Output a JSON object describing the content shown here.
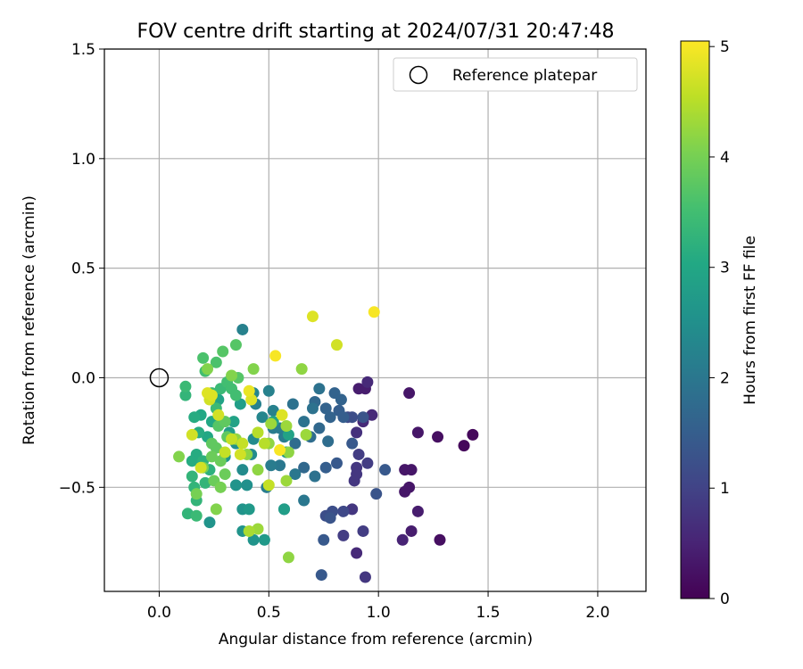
{
  "chart_data": {
    "type": "scatter",
    "title": "FOV centre drift starting at 2024/07/31 20:47:48",
    "xlabel": "Angular distance from reference (arcmin)",
    "ylabel": "Rotation from reference (arcmin)",
    "xlim": [
      -0.25,
      2.22
    ],
    "ylim": [
      -0.975,
      1.5
    ],
    "xticks": [
      0.0,
      0.5,
      1.0,
      1.5,
      2.0
    ],
    "xtick_labels": [
      "0.0",
      "0.5",
      "1.0",
      "1.5",
      "2.0"
    ],
    "yticks": [
      -0.5,
      0.0,
      0.5,
      1.0,
      1.5
    ],
    "ytick_labels": [
      "−0.5",
      "0.0",
      "0.5",
      "1.0",
      "1.5"
    ],
    "grid": true,
    "legend": {
      "position": "top-right",
      "entries": [
        {
          "label": "Reference platepar",
          "marker": "open-circle"
        }
      ]
    },
    "reference_point": {
      "x": 0.0,
      "y": 0.0,
      "label": "Reference platepar"
    },
    "colorbar": {
      "label": "Hours from first FF file",
      "range": [
        0,
        5.05
      ],
      "ticks": [
        0,
        1,
        2,
        3,
        4,
        5
      ],
      "tick_labels": [
        "0",
        "1",
        "2",
        "3",
        "4",
        "5"
      ],
      "colormap": "viridis"
    },
    "series": [
      {
        "name": "",
        "note_color_encodes": "hours",
        "points": [
          [
            1.43,
            -0.26,
            0.1
          ],
          [
            1.39,
            -0.31,
            0.1
          ],
          [
            1.27,
            -0.27,
            0.2
          ],
          [
            1.28,
            -0.74,
            0.2
          ],
          [
            1.18,
            -0.25,
            0.3
          ],
          [
            1.14,
            -0.07,
            0.3
          ],
          [
            1.15,
            -0.42,
            0.3
          ],
          [
            1.12,
            -0.42,
            0.3
          ],
          [
            1.14,
            -0.5,
            0.3
          ],
          [
            1.12,
            -0.52,
            0.3
          ],
          [
            1.18,
            -0.61,
            0.4
          ],
          [
            1.15,
            -0.7,
            0.4
          ],
          [
            1.11,
            -0.74,
            0.5
          ],
          [
            0.91,
            -0.05,
            0.4
          ],
          [
            0.94,
            -0.05,
            0.4
          ],
          [
            0.95,
            -0.02,
            0.6
          ],
          [
            0.97,
            -0.17,
            0.6
          ],
          [
            0.93,
            -0.2,
            0.6
          ],
          [
            0.9,
            -0.25,
            0.7
          ],
          [
            0.89,
            -0.47,
            0.8
          ],
          [
            0.9,
            -0.41,
            0.8
          ],
          [
            0.95,
            -0.39,
            0.9
          ],
          [
            0.91,
            -0.35,
            0.9
          ],
          [
            0.9,
            -0.44,
            0.8
          ],
          [
            0.93,
            -0.7,
            0.9
          ],
          [
            0.9,
            -0.8,
            0.6
          ],
          [
            0.94,
            -0.91,
            0.8
          ],
          [
            0.84,
            -0.72,
            0.9
          ],
          [
            0.88,
            -0.6,
            0.8
          ],
          [
            0.86,
            -0.18,
            1.1
          ],
          [
            0.88,
            -0.18,
            1.2
          ],
          [
            0.93,
            -0.18,
            1.3
          ],
          [
            0.99,
            -0.53,
            1.3
          ],
          [
            1.03,
            -0.42,
            1.4
          ],
          [
            0.84,
            -0.61,
            1.1
          ],
          [
            0.79,
            -0.61,
            1.2
          ],
          [
            0.76,
            -0.63,
            1.2
          ],
          [
            0.78,
            -0.64,
            1.3
          ],
          [
            0.75,
            -0.74,
            1.4
          ],
          [
            0.74,
            -0.9,
            1.4
          ],
          [
            0.81,
            -0.39,
            1.4
          ],
          [
            0.76,
            -0.41,
            1.5
          ],
          [
            0.88,
            -0.3,
            1.4
          ],
          [
            0.82,
            -0.15,
            1.5
          ],
          [
            0.84,
            -0.18,
            1.5
          ],
          [
            0.78,
            -0.18,
            1.6
          ],
          [
            0.8,
            -0.07,
            1.6
          ],
          [
            0.83,
            -0.1,
            1.6
          ],
          [
            0.76,
            -0.14,
            1.6
          ],
          [
            0.71,
            -0.11,
            1.7
          ],
          [
            0.73,
            -0.23,
            1.7
          ],
          [
            0.77,
            -0.29,
            1.8
          ],
          [
            0.69,
            -0.27,
            1.8
          ],
          [
            0.73,
            -0.05,
            1.9
          ],
          [
            0.7,
            -0.14,
            1.9
          ],
          [
            0.66,
            -0.2,
            1.9
          ],
          [
            0.61,
            -0.12,
            1.9
          ],
          [
            0.62,
            -0.3,
            1.8
          ],
          [
            0.66,
            -0.41,
            1.7
          ],
          [
            0.71,
            -0.45,
            1.9
          ],
          [
            0.66,
            -0.56,
            2.0
          ],
          [
            0.57,
            -0.6,
            2.0
          ],
          [
            0.62,
            -0.44,
            2.0
          ],
          [
            0.55,
            -0.4,
            2.0
          ],
          [
            0.51,
            -0.4,
            2.1
          ],
          [
            0.49,
            -0.5,
            2.1
          ],
          [
            0.52,
            -0.23,
            2.1
          ],
          [
            0.55,
            -0.23,
            2.1
          ],
          [
            0.57,
            -0.27,
            2.1
          ],
          [
            0.52,
            -0.15,
            2.2
          ],
          [
            0.5,
            -0.06,
            2.2
          ],
          [
            0.43,
            -0.07,
            2.3
          ],
          [
            0.44,
            -0.12,
            2.2
          ],
          [
            0.47,
            -0.18,
            2.3
          ],
          [
            0.38,
            0.22,
            2.2
          ],
          [
            0.43,
            -0.28,
            2.4
          ],
          [
            0.42,
            -0.35,
            2.4
          ],
          [
            0.38,
            -0.42,
            2.4
          ],
          [
            0.35,
            -0.3,
            2.5
          ],
          [
            0.3,
            -0.36,
            2.6
          ],
          [
            0.4,
            -0.49,
            2.5
          ],
          [
            0.35,
            -0.49,
            2.6
          ],
          [
            0.38,
            -0.6,
            2.6
          ],
          [
            0.41,
            -0.6,
            2.7
          ],
          [
            0.38,
            -0.7,
            2.6
          ],
          [
            0.48,
            -0.74,
            2.7
          ],
          [
            0.43,
            -0.74,
            2.6
          ],
          [
            0.23,
            -0.66,
            2.6
          ],
          [
            0.57,
            -0.6,
            2.8
          ],
          [
            0.58,
            -0.34,
            2.6
          ],
          [
            0.59,
            -0.26,
            2.9
          ],
          [
            0.52,
            -0.2,
            2.9
          ],
          [
            0.37,
            -0.12,
            2.8
          ],
          [
            0.32,
            -0.25,
            2.8
          ],
          [
            0.34,
            -0.2,
            2.9
          ],
          [
            0.27,
            -0.1,
            2.9
          ],
          [
            0.24,
            -0.2,
            3.0
          ],
          [
            0.22,
            -0.27,
            3.0
          ],
          [
            0.19,
            -0.17,
            3.0
          ],
          [
            0.16,
            -0.18,
            3.1
          ],
          [
            0.18,
            -0.25,
            3.1
          ],
          [
            0.17,
            -0.35,
            3.1
          ],
          [
            0.15,
            -0.38,
            3.1
          ],
          [
            0.2,
            -0.38,
            3.2
          ],
          [
            0.23,
            -0.42,
            3.2
          ],
          [
            0.21,
            -0.48,
            3.3
          ],
          [
            0.15,
            -0.45,
            3.3
          ],
          [
            0.16,
            -0.5,
            3.3
          ],
          [
            0.17,
            -0.56,
            3.3
          ],
          [
            0.13,
            -0.62,
            3.3
          ],
          [
            0.17,
            -0.63,
            3.4
          ],
          [
            0.24,
            -0.07,
            3.4
          ],
          [
            0.12,
            -0.04,
            3.4
          ],
          [
            0.12,
            -0.08,
            3.3
          ],
          [
            0.26,
            -0.14,
            3.4
          ],
          [
            0.28,
            -0.05,
            3.4
          ],
          [
            0.31,
            -0.02,
            3.5
          ],
          [
            0.33,
            -0.05,
            3.5
          ],
          [
            0.35,
            -0.08,
            3.5
          ],
          [
            0.21,
            0.03,
            3.5
          ],
          [
            0.26,
            0.07,
            3.6
          ],
          [
            0.2,
            0.09,
            3.6
          ],
          [
            0.29,
            0.12,
            3.7
          ],
          [
            0.35,
            0.15,
            3.7
          ],
          [
            0.36,
            0.0,
            3.7
          ],
          [
            0.27,
            -0.22,
            3.7
          ],
          [
            0.24,
            -0.3,
            3.8
          ],
          [
            0.3,
            -0.2,
            3.8
          ],
          [
            0.31,
            -0.27,
            3.8
          ],
          [
            0.26,
            -0.32,
            3.8
          ],
          [
            0.24,
            -0.36,
            3.9
          ],
          [
            0.28,
            -0.38,
            3.9
          ],
          [
            0.3,
            -0.44,
            3.9
          ],
          [
            0.25,
            -0.47,
            3.9
          ],
          [
            0.28,
            -0.5,
            4.0
          ],
          [
            0.2,
            -0.41,
            4.0
          ],
          [
            0.17,
            -0.53,
            4.0
          ],
          [
            0.26,
            -0.6,
            4.1
          ],
          [
            0.09,
            -0.36,
            4.1
          ],
          [
            0.22,
            0.04,
            4.1
          ],
          [
            0.33,
            0.01,
            4.1
          ],
          [
            0.43,
            0.04,
            4.1
          ],
          [
            0.35,
            -0.28,
            4.2
          ],
          [
            0.4,
            -0.35,
            4.2
          ],
          [
            0.45,
            -0.42,
            4.2
          ],
          [
            0.5,
            -0.3,
            4.2
          ],
          [
            0.51,
            -0.21,
            4.3
          ],
          [
            0.59,
            -0.34,
            4.2
          ],
          [
            0.58,
            -0.22,
            4.3
          ],
          [
            0.58,
            -0.47,
            4.3
          ],
          [
            0.67,
            -0.26,
            4.3
          ],
          [
            0.65,
            0.04,
            4.2
          ],
          [
            0.59,
            -0.82,
            4.2
          ],
          [
            0.45,
            -0.69,
            4.3
          ],
          [
            0.41,
            -0.7,
            4.4
          ],
          [
            0.45,
            -0.25,
            4.5
          ],
          [
            0.48,
            -0.3,
            4.5
          ],
          [
            0.38,
            -0.3,
            4.6
          ],
          [
            0.3,
            -0.34,
            4.6
          ],
          [
            0.27,
            -0.17,
            4.7
          ],
          [
            0.23,
            -0.1,
            4.7
          ],
          [
            0.24,
            -0.08,
            4.8
          ],
          [
            0.22,
            -0.07,
            4.8
          ],
          [
            0.19,
            -0.41,
            4.7
          ],
          [
            0.42,
            -0.1,
            4.8
          ],
          [
            0.41,
            -0.06,
            4.9
          ],
          [
            0.15,
            -0.26,
            4.7
          ],
          [
            0.33,
            -0.28,
            4.6
          ],
          [
            0.37,
            -0.35,
            4.7
          ],
          [
            0.5,
            -0.49,
            4.6
          ],
          [
            0.56,
            -0.17,
            4.8
          ],
          [
            0.55,
            -0.33,
            5.0
          ],
          [
            0.53,
            0.1,
            5.0
          ],
          [
            0.7,
            0.28,
            4.8
          ],
          [
            0.81,
            0.15,
            4.7
          ],
          [
            0.98,
            0.3,
            5.0
          ]
        ]
      }
    ]
  }
}
